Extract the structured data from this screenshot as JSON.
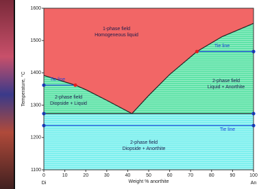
{
  "chart_data": {
    "type": "phase-diagram",
    "xlabel": "Weight % anorthite",
    "ylabel": "Temperature, °C",
    "xlim": [
      0,
      100
    ],
    "ylim": [
      1100,
      1600
    ],
    "xticks": [
      0,
      10,
      20,
      30,
      40,
      50,
      60,
      70,
      80,
      90,
      100
    ],
    "yticks": [
      1100,
      1200,
      1300,
      1400,
      1500,
      1600
    ],
    "end_labels": [
      "Di",
      "An"
    ],
    "liquidus": {
      "x": [
        0,
        10,
        15,
        20,
        30,
        42,
        50,
        60,
        73,
        85,
        100
      ],
      "values": [
        1392,
        1372,
        1362,
        1348,
        1315,
        1274,
        1330,
        1395,
        1466,
        1512,
        1553
      ]
    },
    "tie_lines": [
      {
        "label": "Tie line",
        "temperature": 1362,
        "x": [
          0,
          15
        ]
      },
      {
        "label": "Tie line",
        "temperature": 1466,
        "x": [
          73,
          100
        ]
      },
      {
        "temperature": 1274,
        "x": [
          0,
          100
        ]
      },
      {
        "label": "Tie line",
        "temperature": 1237,
        "x": [
          0,
          100
        ]
      }
    ],
    "fields": [
      {
        "lines": [
          "1-phase field",
          "Homogeneous liquid"
        ]
      },
      {
        "lines": [
          "2-phase field",
          "Liquid + Anorthite"
        ]
      },
      {
        "lines": [
          "2-phase field",
          "Diopside + Liquid"
        ]
      },
      {
        "lines": [
          "2-phase field",
          "Diopside + Anorthite"
        ]
      }
    ],
    "colors": {
      "liquid": "#f26666",
      "two_phase": "#5fe3a8",
      "solid": "#7df0ee",
      "curve": "#222222",
      "tie_line": "#1a3fd8"
    }
  }
}
